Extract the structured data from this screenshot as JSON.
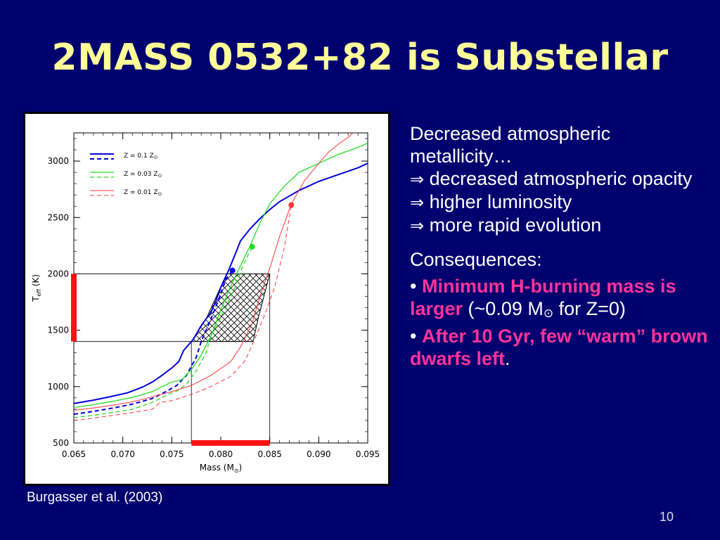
{
  "slide": {
    "title": "2MASS 0532+82 is Substellar",
    "credit": "Burgasser et al. (2003)",
    "page_number": "10"
  },
  "text": {
    "line1": "Decreased atmospheric metallicity…",
    "arrow_symbol": "⇒",
    "line2": "decreased atmospheric opacity",
    "line3": "higher luminosity",
    "line4": "more rapid evolution",
    "consequences": "Consequences:",
    "bullet": "•",
    "c1_highlight": "Minimum H-burning mass is larger",
    "c1_rest_a": " (~0.09 M",
    "sun_symbol": "⊙",
    "c1_rest_b": " for Z=0)",
    "c2_highlight": "After 10 Gyr, few “warm” brown dwarfs left",
    "c2_rest": "."
  },
  "colors": {
    "background": "#00006e",
    "title": "#ffff99",
    "highlight": "#ff3399",
    "z01": "#0000dd",
    "z003": "#22dd22",
    "z001": "#ff3333",
    "range_bar": "#ff1111"
  },
  "chart_data": {
    "type": "line",
    "xlabel": "Mass (M",
    "xlabel_sub": "⊙",
    "xlabel_close": ")",
    "ylabel_main": "T",
    "ylabel_sub": "eff",
    "ylabel_rest": " (K)",
    "xlim": [
      0.065,
      0.095
    ],
    "ylim": [
      500,
      3250
    ],
    "xticks": [
      "0.065",
      "0.070",
      "0.075",
      "0.080",
      "0.085",
      "0.090",
      "0.095"
    ],
    "xtick_values": [
      0.065,
      0.07,
      0.075,
      0.08,
      0.085,
      0.09,
      0.095
    ],
    "yticks": [
      "500",
      "1000",
      "1500",
      "2000",
      "2500",
      "3000"
    ],
    "ytick_values": [
      500,
      1000,
      1500,
      2000,
      2500,
      3000
    ],
    "legend_position": "top-left",
    "series": [
      {
        "name": "Z = 0.1 Z",
        "name_sub": "⊙",
        "color": "#0000dd",
        "solid": [
          [
            0.065,
            850
          ],
          [
            0.067,
            880
          ],
          [
            0.069,
            915
          ],
          [
            0.0705,
            945
          ],
          [
            0.072,
            995
          ],
          [
            0.073,
            1040
          ],
          [
            0.074,
            1100
          ],
          [
            0.075,
            1165
          ],
          [
            0.0757,
            1220
          ],
          [
            0.0762,
            1320
          ],
          [
            0.0772,
            1420
          ],
          [
            0.078,
            1540
          ],
          [
            0.079,
            1660
          ],
          [
            0.0795,
            1760
          ],
          [
            0.08,
            1880
          ],
          [
            0.0808,
            2030
          ],
          [
            0.0815,
            2180
          ],
          [
            0.082,
            2290
          ],
          [
            0.083,
            2400
          ],
          [
            0.084,
            2490
          ],
          [
            0.085,
            2570
          ],
          [
            0.086,
            2640
          ],
          [
            0.088,
            2740
          ],
          [
            0.09,
            2820
          ],
          [
            0.092,
            2880
          ],
          [
            0.094,
            2940
          ],
          [
            0.095,
            2980
          ]
        ],
        "dashed": [
          [
            0.065,
            755
          ],
          [
            0.067,
            780
          ],
          [
            0.069,
            810
          ],
          [
            0.071,
            845
          ],
          [
            0.073,
            895
          ],
          [
            0.0745,
            960
          ],
          [
            0.0755,
            1010
          ],
          [
            0.0765,
            1100
          ],
          [
            0.0775,
            1260
          ],
          [
            0.078,
            1400
          ],
          [
            0.0786,
            1520
          ],
          [
            0.079,
            1600
          ],
          [
            0.08,
            1820
          ],
          [
            0.0805,
            1950
          ],
          [
            0.0812,
            2030
          ]
        ],
        "marker": [
          0.0812,
          2030
        ]
      },
      {
        "name": "Z = 0.03 Z",
        "name_sub": "⊙",
        "color": "#22dd22",
        "solid": [
          [
            0.065,
            815
          ],
          [
            0.067,
            840
          ],
          [
            0.069,
            870
          ],
          [
            0.071,
            905
          ],
          [
            0.073,
            955
          ],
          [
            0.074,
            1000
          ],
          [
            0.075,
            1040
          ],
          [
            0.076,
            1060
          ],
          [
            0.077,
            1150
          ],
          [
            0.078,
            1280
          ],
          [
            0.079,
            1450
          ],
          [
            0.08,
            1680
          ],
          [
            0.081,
            1890
          ],
          [
            0.082,
            2070
          ],
          [
            0.083,
            2250
          ],
          [
            0.084,
            2450
          ],
          [
            0.085,
            2620
          ],
          [
            0.0865,
            2780
          ],
          [
            0.088,
            2900
          ],
          [
            0.09,
            2980
          ],
          [
            0.092,
            3060
          ],
          [
            0.094,
            3120
          ],
          [
            0.095,
            3160
          ]
        ],
        "dashed": [
          [
            0.065,
            725
          ],
          [
            0.067,
            745
          ],
          [
            0.069,
            770
          ],
          [
            0.071,
            800
          ],
          [
            0.073,
            860
          ],
          [
            0.0745,
            925
          ],
          [
            0.0755,
            960
          ],
          [
            0.0765,
            1020
          ],
          [
            0.0775,
            1140
          ],
          [
            0.0785,
            1300
          ],
          [
            0.079,
            1450
          ],
          [
            0.0805,
            1700
          ],
          [
            0.0815,
            1890
          ],
          [
            0.0823,
            2080
          ],
          [
            0.0832,
            2240
          ]
        ],
        "marker": [
          0.0832,
          2240
        ]
      },
      {
        "name": "Z = 0.01 Z",
        "name_sub": "⊙",
        "color": "#ff3333",
        "solid": [
          [
            0.065,
            790
          ],
          [
            0.067,
            810
          ],
          [
            0.069,
            835
          ],
          [
            0.071,
            865
          ],
          [
            0.073,
            910
          ],
          [
            0.075,
            955
          ],
          [
            0.077,
            1010
          ],
          [
            0.079,
            1100
          ],
          [
            0.081,
            1220
          ],
          [
            0.082,
            1350
          ],
          [
            0.0832,
            1560
          ],
          [
            0.084,
            1800
          ],
          [
            0.085,
            2050
          ],
          [
            0.086,
            2330
          ],
          [
            0.0872,
            2620
          ],
          [
            0.0885,
            2820
          ],
          [
            0.09,
            2980
          ],
          [
            0.091,
            3080
          ],
          [
            0.092,
            3150
          ],
          [
            0.093,
            3210
          ],
          [
            0.0935,
            3250
          ]
        ],
        "dashed": [
          [
            0.065,
            700
          ],
          [
            0.067,
            720
          ],
          [
            0.069,
            745
          ],
          [
            0.071,
            770
          ],
          [
            0.073,
            800
          ],
          [
            0.0738,
            860
          ],
          [
            0.075,
            875
          ],
          [
            0.077,
            930
          ],
          [
            0.079,
            1000
          ],
          [
            0.081,
            1090
          ],
          [
            0.0825,
            1230
          ],
          [
            0.0835,
            1430
          ],
          [
            0.0845,
            1640
          ],
          [
            0.0855,
            1880
          ],
          [
            0.0865,
            2240
          ],
          [
            0.0872,
            2610
          ]
        ],
        "marker": [
          0.0872,
          2610
        ]
      }
    ],
    "mass_range": [
      0.077,
      0.085
    ],
    "teff_range": [
      1400,
      2000
    ],
    "hatched_region": [
      [
        0.077,
        1400
      ],
      [
        0.0785,
        1600
      ],
      [
        0.0806,
        2000
      ],
      [
        0.085,
        2000
      ],
      [
        0.0838,
        1600
      ],
      [
        0.0833,
        1400
      ]
    ]
  }
}
